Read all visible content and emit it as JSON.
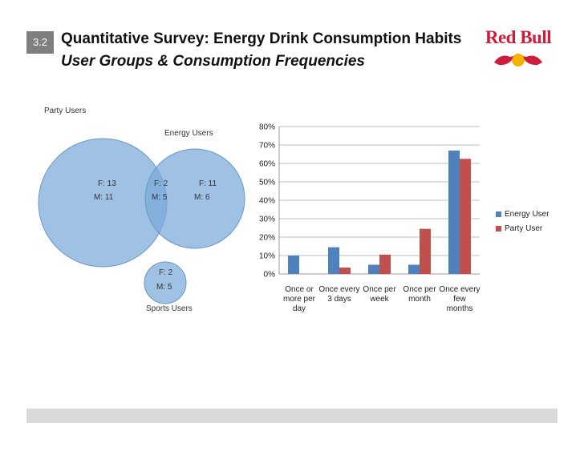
{
  "header": {
    "slide_number": "3.2",
    "title": "Quantitative Survey: Energy Drink Consumption Habits",
    "subtitle": "User Groups & Consumption Frequencies"
  },
  "logo": {
    "text": "Red Bull",
    "color": "#cc1e3c",
    "bull_color": "#cc1e3c",
    "sun_color": "#f2b400"
  },
  "venn": {
    "party_users": {
      "label": "Party Users",
      "f_only": "F: 13",
      "m_only": "M: 11"
    },
    "energy_users": {
      "label": "Energy Users",
      "f_only": "F: 11",
      "m_only": "M: 6"
    },
    "party_energy_overlap": {
      "f": "F: 2",
      "m": "M: 5"
    },
    "sports_users": {
      "label": "Sports Users",
      "f": "F: 2",
      "m": "M: 5"
    },
    "fill_color": "#7aa9da"
  },
  "chart_data": {
    "type": "bar",
    "categories": [
      [
        "Once or",
        "more per",
        "day"
      ],
      [
        "Once every",
        "3 days"
      ],
      [
        "Once per",
        "week"
      ],
      [
        "Once per",
        "month"
      ],
      [
        "Once every",
        "few",
        "months"
      ]
    ],
    "series": [
      {
        "name": "Energy User",
        "values": [
          10,
          14.5,
          5,
          5,
          67
        ],
        "color": "#4f81bd"
      },
      {
        "name": "Party User",
        "values": [
          0,
          3.5,
          10.5,
          24.5,
          62.5
        ],
        "color": "#c0504d"
      }
    ],
    "ylim": [
      0,
      80
    ],
    "yticks": [
      "0%",
      "10%",
      "20%",
      "30%",
      "40%",
      "50%",
      "60%",
      "70%",
      "80%"
    ],
    "ytick_values": [
      0,
      10,
      20,
      30,
      40,
      50,
      60,
      70,
      80
    ],
    "grid": true,
    "legend": "right"
  }
}
